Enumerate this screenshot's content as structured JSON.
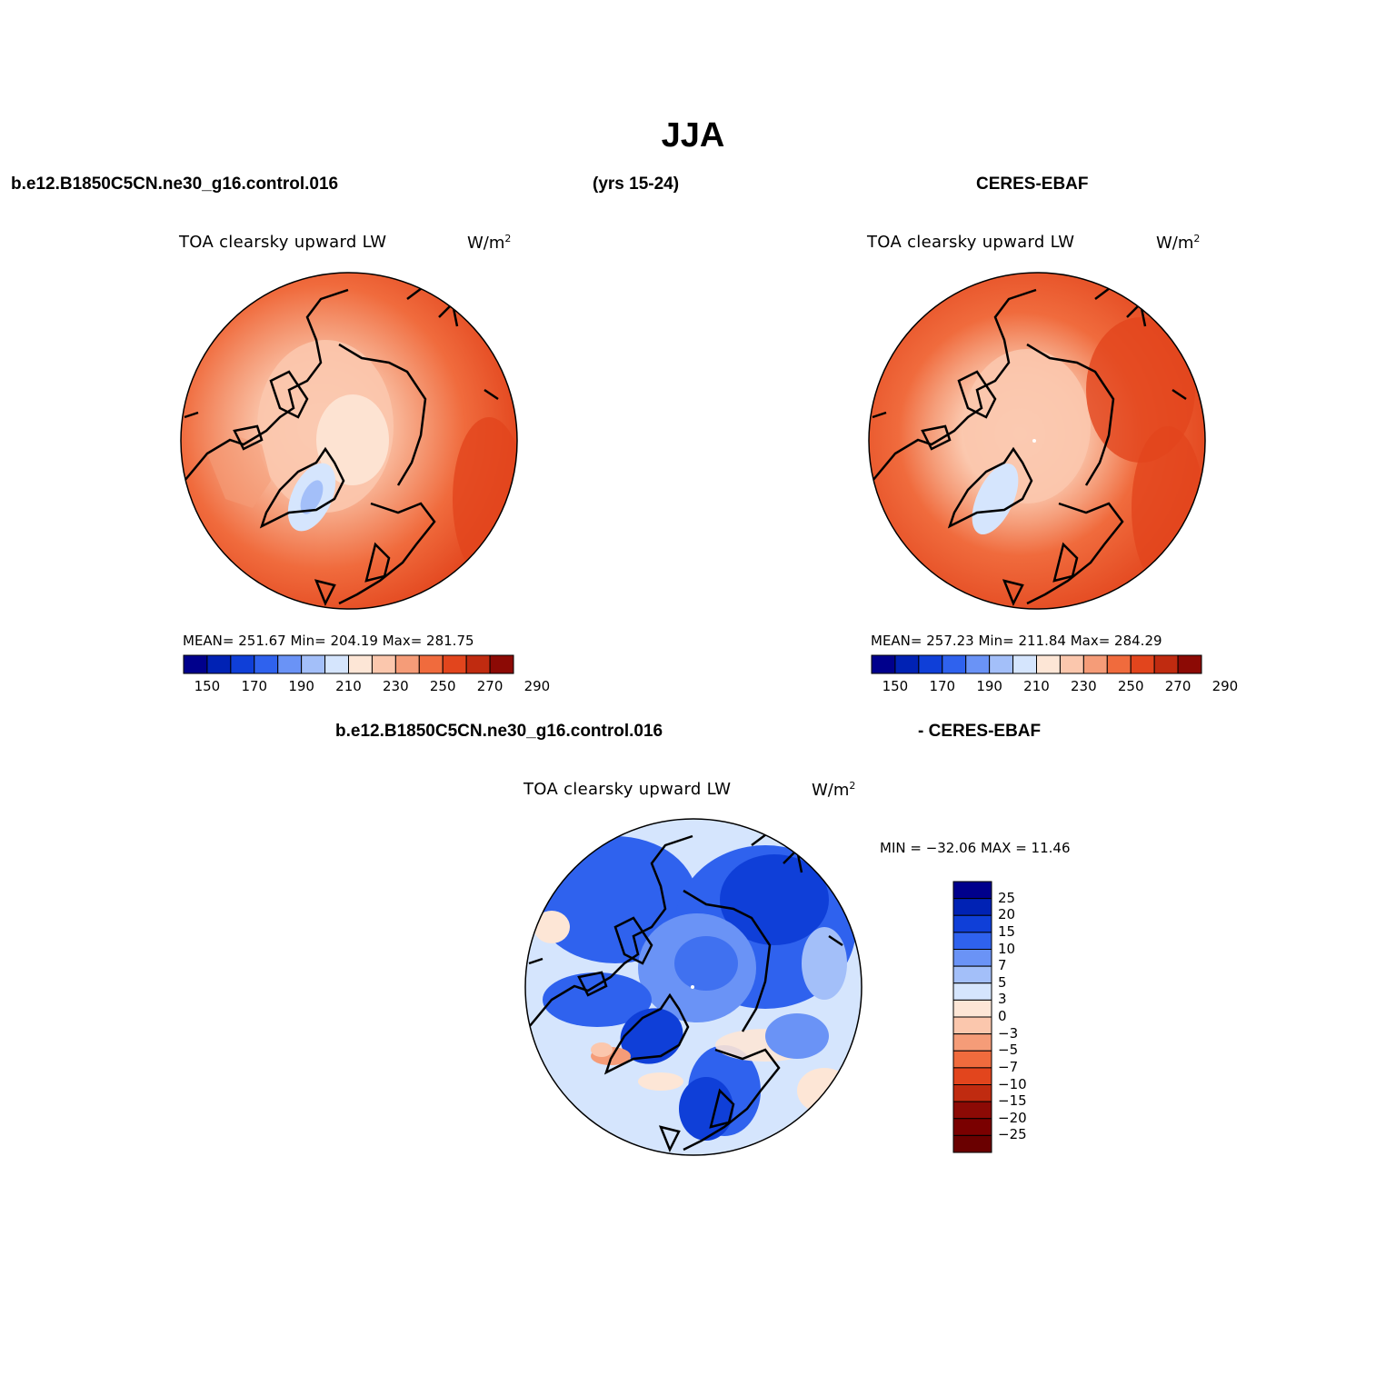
{
  "page": {
    "title": "JJA",
    "header_left": "b.e12.B1850C5CN.ne30_g16.control.016",
    "header_center": "(yrs 15-24)",
    "header_right": "CERES-EBAF",
    "diff_header_left": "b.e12.B1850C5CN.ne30_g16.control.016",
    "diff_header_right": "- CERES-EBAF"
  },
  "panels": {
    "model": {
      "title": "TOA clearsky upward LW",
      "units": "W/m",
      "units_sup": "2",
      "stats": "MEAN= 251.67   Min= 204.19   Max= 281.75"
    },
    "obs": {
      "title": "TOA clearsky upward LW",
      "units": "W/m",
      "units_sup": "2",
      "stats": "MEAN= 257.23   Min= 211.84   Max= 284.29"
    },
    "diff": {
      "title": "TOA clearsky upward LW",
      "units": "W/m",
      "units_sup": "2",
      "stats": "MIN = −32.06 MAX =   11.46"
    }
  },
  "colorbar_abs": {
    "colors": [
      "#00008c",
      "#0022b4",
      "#0f3fd8",
      "#2f62ee",
      "#6a93f6",
      "#a3bff9",
      "#d5e5fd",
      "#fde6d6",
      "#fbc7ad",
      "#f59c78",
      "#f06b3d",
      "#e2451d",
      "#c02b10",
      "#8c0a05"
    ],
    "labels": [
      "150",
      "170",
      "190",
      "210",
      "230",
      "250",
      "270",
      "290"
    ]
  },
  "colorbar_diff": {
    "colors": [
      "#00008c",
      "#0022b4",
      "#0f3fd8",
      "#2f62ee",
      "#6a93f6",
      "#a3bff9",
      "#d5e5fd",
      "#fde6d6",
      "#fbc7ad",
      "#f59c78",
      "#f06b3d",
      "#e2451d",
      "#c02b10",
      "#8c0a05",
      "#7a0000",
      "#6a0000"
    ],
    "labels": [
      "25",
      "20",
      "15",
      "10",
      "7",
      "5",
      "3",
      "0",
      "−3",
      "−5",
      "−7",
      "−10",
      "−15",
      "−20",
      "−25"
    ]
  }
}
